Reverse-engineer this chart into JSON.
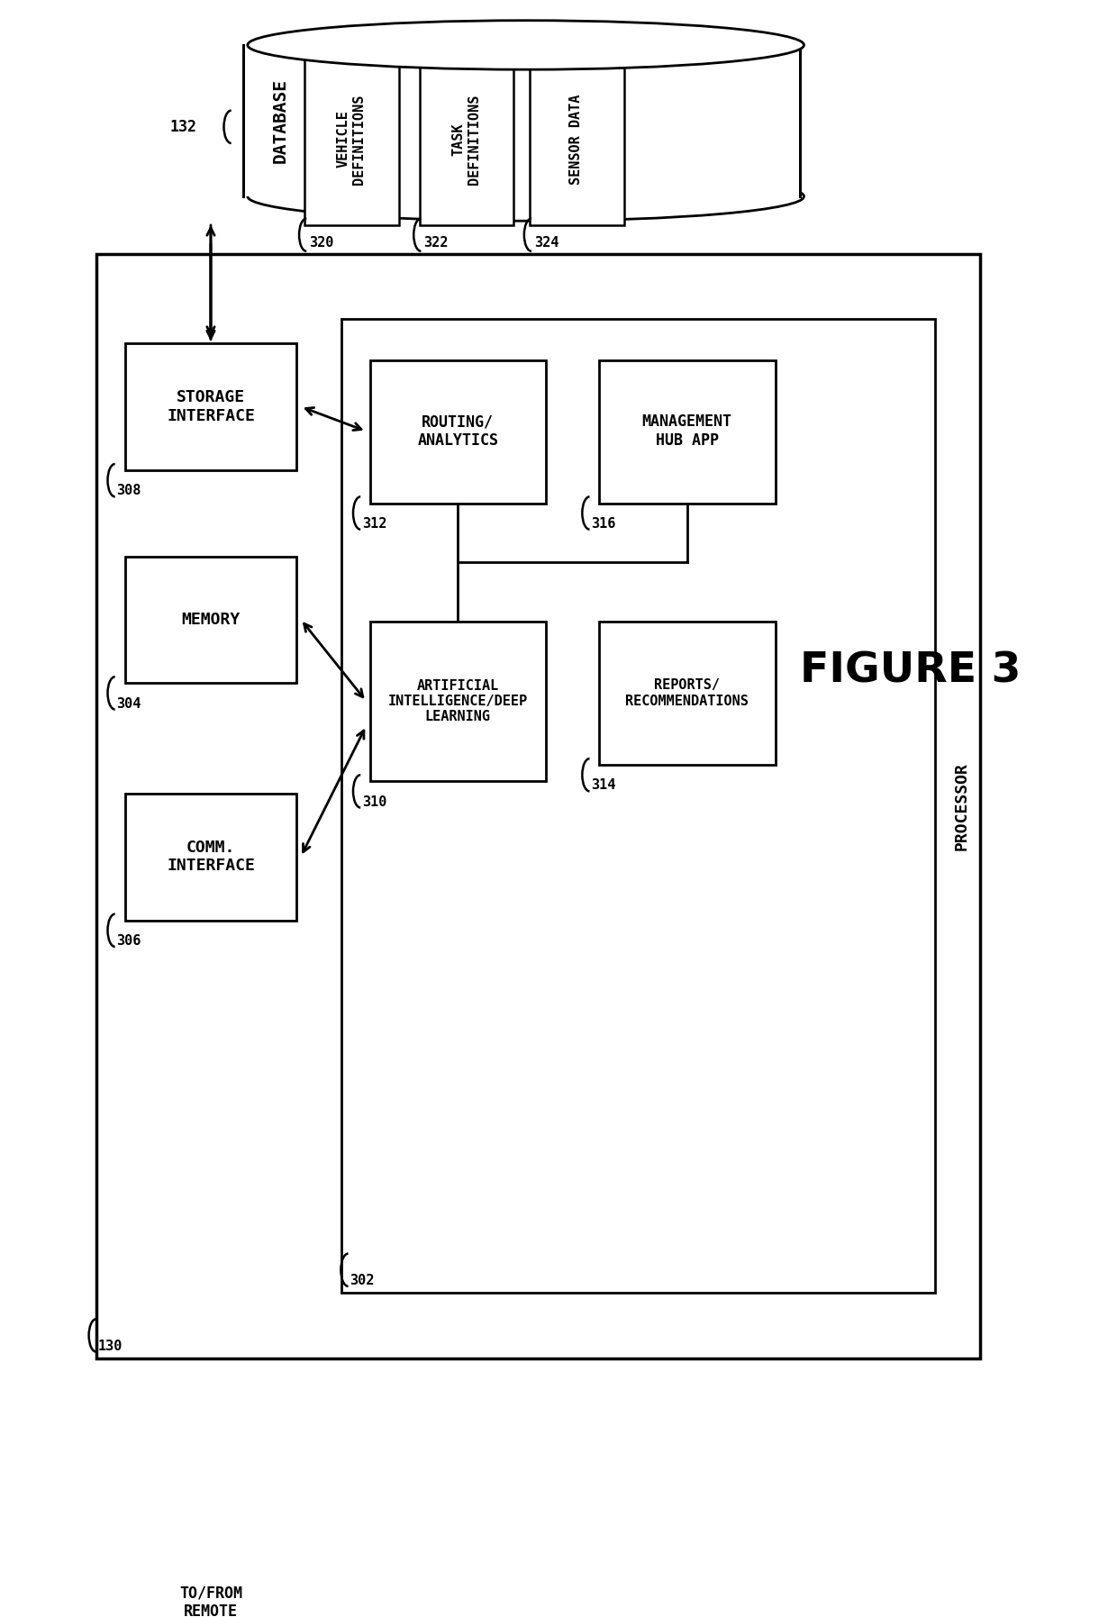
{
  "bg_color": "#ffffff",
  "line_color": "#000000",
  "fig_title": "FIGURE 3",
  "db_sub_boxes": [
    {
      "label": "VEHICLE\nDEFINITIONS",
      "ref": "320"
    },
    {
      "label": "TASK\nDEFINITIONS",
      "ref": "322"
    },
    {
      "label": "SENSOR DATA",
      "ref": "324"
    }
  ]
}
